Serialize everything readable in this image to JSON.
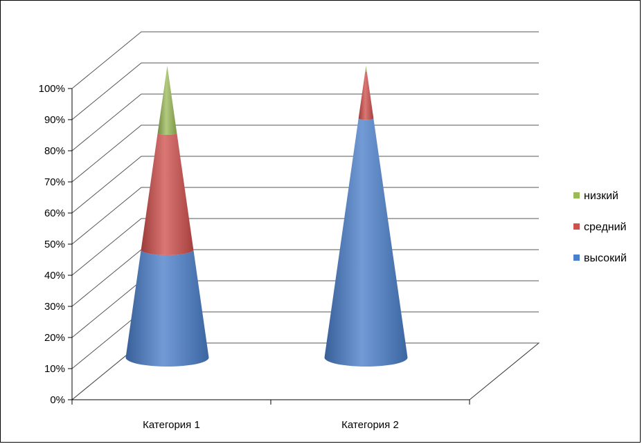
{
  "chart_data": {
    "type": "bar",
    "subtype": "3d-stacked-100-cone",
    "categories": [
      "Категория 1",
      "Категория 2"
    ],
    "series": [
      {
        "name": "высокий",
        "values": [
          37,
          82
        ],
        "color": "#4a7fcb"
      },
      {
        "name": "средний",
        "values": [
          40,
          16
        ],
        "color": "#d0504d"
      },
      {
        "name": "низкий",
        "values": [
          23,
          2
        ],
        "color": "#9bbb59"
      }
    ],
    "y_ticks": [
      "0%",
      "10%",
      "20%",
      "30%",
      "40%",
      "50%",
      "60%",
      "70%",
      "80%",
      "90%",
      "100%"
    ],
    "ylim": [
      0,
      100
    ],
    "grid": true,
    "legend": "right",
    "legend_order": [
      "низкий",
      "средний",
      "высокий"
    ]
  }
}
